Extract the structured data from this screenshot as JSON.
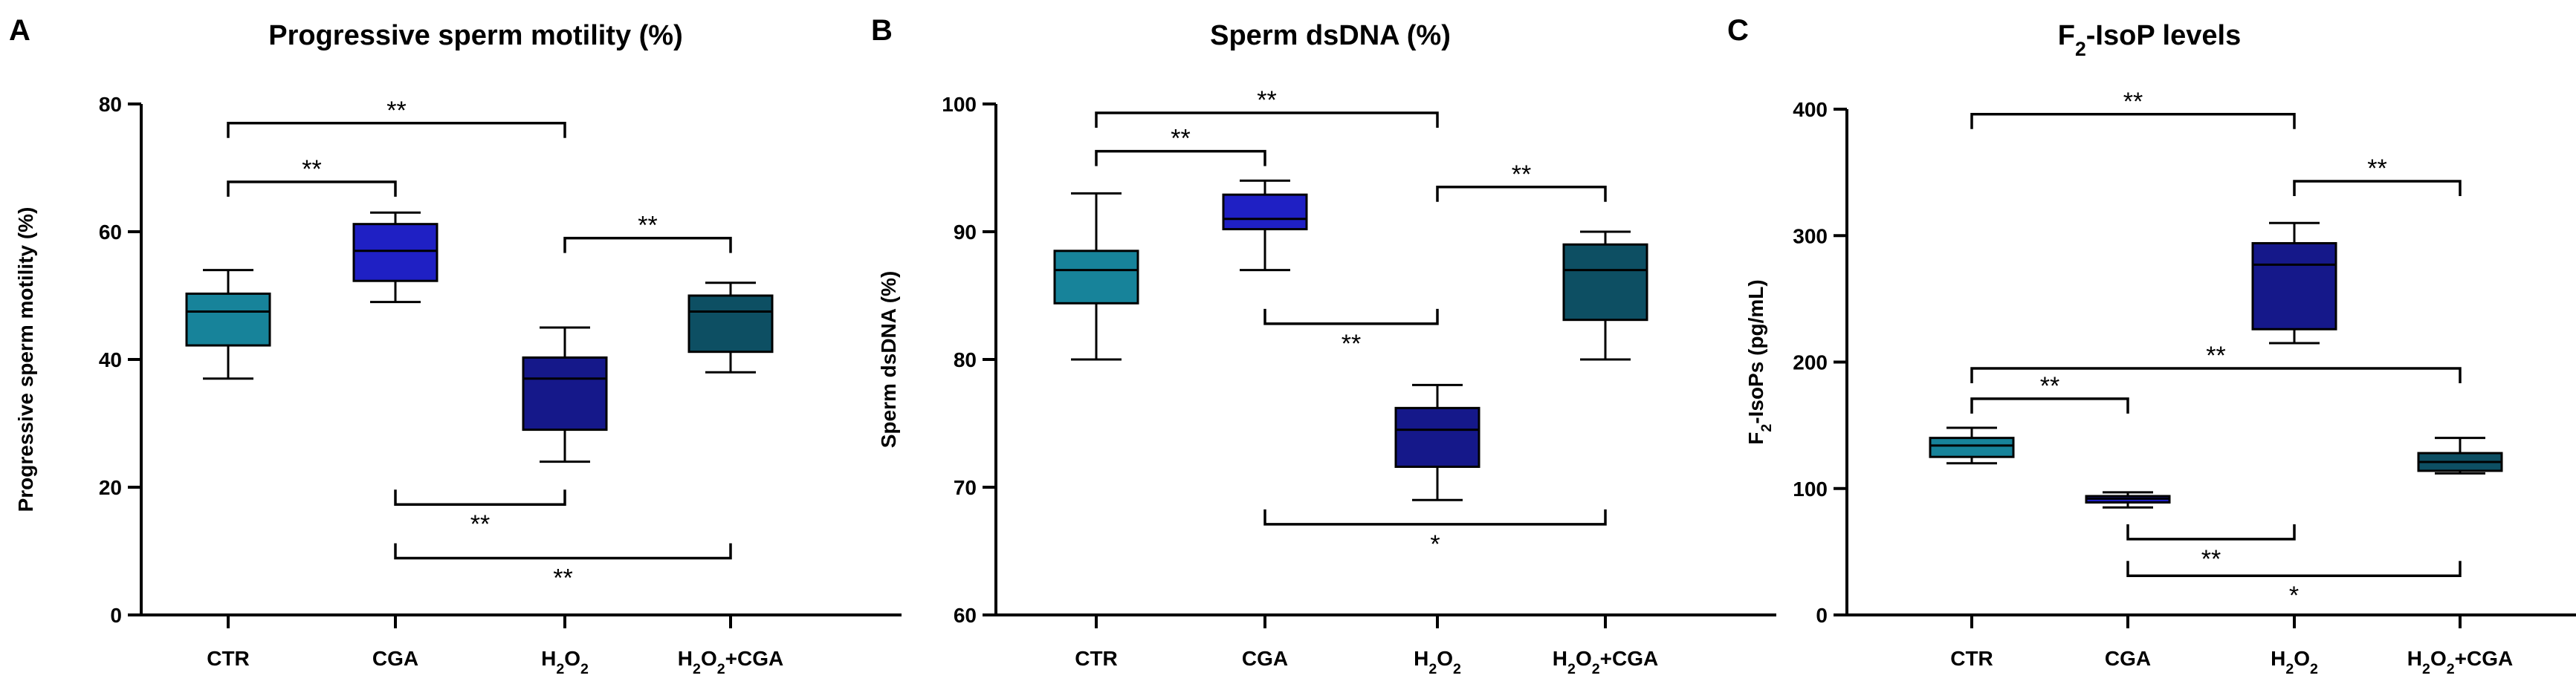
{
  "colors": {
    "CTR": "#17839a",
    "CGA": "#1f20c4",
    "H2O2": "#15188a",
    "H2O2_CGA": "#0d4f63"
  },
  "chart_data": [
    {
      "type": "box",
      "panel": "A",
      "title": "Progressive sperm motility (%)",
      "xlabel": "",
      "ylabel": "Progressive sperm motility (%)",
      "ylim": [
        0,
        80
      ],
      "yticks": [
        "0",
        "20",
        "40",
        "60",
        "80"
      ],
      "groups": [
        {
          "label": "CTR",
          "html": "CTR",
          "color": "#17839a",
          "min": 37,
          "q1": 42.2,
          "median": 47.5,
          "q3": 50.3,
          "max": 54
        },
        {
          "label": "CGA",
          "html": "CGA",
          "color": "#1f20c4",
          "min": 49,
          "q1": 52.3,
          "median": 57,
          "q3": 61.2,
          "max": 63
        },
        {
          "label": "H2O2",
          "html": "H<tspan baseline-shift='sub' font-size='70%'>2</tspan>O<tspan baseline-shift='sub' font-size='70%'>2</tspan>",
          "color": "#15188a",
          "min": 24,
          "q1": 29,
          "median": 37,
          "q3": 40.3,
          "max": 45
        },
        {
          "label": "H2O2+CGA",
          "html": "H<tspan baseline-shift='sub' font-size='70%'>2</tspan>O<tspan baseline-shift='sub' font-size='70%'>2</tspan>+CGA",
          "color": "#0d4f63",
          "min": 38,
          "q1": 41.2,
          "median": 47.5,
          "q3": 50,
          "max": 52
        }
      ],
      "significance": [
        {
          "from": 0,
          "to": 1,
          "y": 67.8,
          "dir": "down",
          "label": "**"
        },
        {
          "from": 0,
          "to": 2,
          "y": 77,
          "dir": "down",
          "label": "**"
        },
        {
          "from": 2,
          "to": 3,
          "y": 59,
          "dir": "down",
          "label": "**"
        },
        {
          "from": 1,
          "to": 2,
          "y": 17.3,
          "dir": "up",
          "label": "**"
        },
        {
          "from": 1,
          "to": 3,
          "y": 8.9,
          "dir": "up",
          "label": "**"
        }
      ]
    },
    {
      "type": "box",
      "panel": "B",
      "title": "Sperm dsDNA (%)",
      "xlabel": "",
      "ylabel": "Sperm dsDNA (%)",
      "ylim": [
        60,
        100
      ],
      "yticks": [
        "60",
        "70",
        "80",
        "90",
        "100"
      ],
      "groups": [
        {
          "label": "CTR",
          "html": "CTR",
          "color": "#17839a",
          "min": 80,
          "q1": 84.4,
          "median": 87,
          "q3": 88.5,
          "max": 93
        },
        {
          "label": "CGA",
          "html": "CGA",
          "color": "#1f20c4",
          "min": 87,
          "q1": 90.2,
          "median": 91,
          "q3": 92.9,
          "max": 94
        },
        {
          "label": "H2O2",
          "html": "H<tspan baseline-shift='sub' font-size='70%'>2</tspan>O<tspan baseline-shift='sub' font-size='70%'>2</tspan>",
          "color": "#15188a",
          "min": 69,
          "q1": 71.6,
          "median": 74.5,
          "q3": 76.2,
          "max": 78
        },
        {
          "label": "H2O2+CGA",
          "html": "H<tspan baseline-shift='sub' font-size='70%'>2</tspan>O<tspan baseline-shift='sub' font-size='70%'>2</tspan>+CGA",
          "color": "#0d4f63",
          "min": 80,
          "q1": 83.1,
          "median": 87,
          "q3": 89,
          "max": 90
        }
      ],
      "significance": [
        {
          "from": 0,
          "to": 2,
          "y": 99.3,
          "dir": "down",
          "label": "**"
        },
        {
          "from": 0,
          "to": 1,
          "y": 96.3,
          "dir": "down",
          "label": "**"
        },
        {
          "from": 2,
          "to": 3,
          "y": 93.5,
          "dir": "down",
          "label": "**"
        },
        {
          "from": 1,
          "to": 2,
          "y": 82.8,
          "dir": "up",
          "label": "**"
        },
        {
          "from": 1,
          "to": 3,
          "y": 67.1,
          "dir": "up",
          "label": "*"
        }
      ]
    },
    {
      "type": "box",
      "panel": "C",
      "title": "F2-IsoP levels",
      "title_html": "F<tspan baseline-shift='sub' font-size='70%'>2</tspan>-IsoP levels",
      "xlabel": "",
      "ylabel": "F2-IsoPs (pg/mL)",
      "ylabel_html": "F<tspan baseline-shift='sub' font-size='70%'>2</tspan>-IsoPs (pg/mL)",
      "ylim": [
        0,
        400
      ],
      "yticks": [
        "0",
        "100",
        "200",
        "300",
        "400"
      ],
      "groups": [
        {
          "label": "CTR",
          "html": "CTR",
          "color": "#17839a",
          "min": 120,
          "q1": 125,
          "median": 134,
          "q3": 140,
          "max": 148
        },
        {
          "label": "CGA",
          "html": "CGA",
          "color": "#1f20c4",
          "min": 85,
          "q1": 89,
          "median": 92,
          "q3": 94,
          "max": 97
        },
        {
          "label": "H2O2",
          "html": "H<tspan baseline-shift='sub' font-size='70%'>2</tspan>O<tspan baseline-shift='sub' font-size='70%'>2</tspan>",
          "color": "#15188a",
          "min": 215,
          "q1": 226,
          "median": 277,
          "q3": 294,
          "max": 310
        },
        {
          "label": "H2O2+CGA",
          "html": "H<tspan baseline-shift='sub' font-size='70%'>2</tspan>O<tspan baseline-shift='sub' font-size='70%'>2</tspan>+CGA",
          "color": "#0d4f63",
          "min": 112,
          "q1": 114,
          "median": 121,
          "q3": 128,
          "max": 140
        }
      ],
      "significance": [
        {
          "from": 0,
          "to": 2,
          "y": 396,
          "dir": "down",
          "label": "**"
        },
        {
          "from": 2,
          "to": 3,
          "y": 343,
          "dir": "down",
          "label": "**"
        },
        {
          "from": 0,
          "to": 3,
          "y": 195,
          "dir": "down",
          "label": "**"
        },
        {
          "from": 0,
          "to": 1,
          "y": 171,
          "dir": "down",
          "label": "**"
        },
        {
          "from": 1,
          "to": 2,
          "y": 60,
          "dir": "up",
          "label": "**"
        },
        {
          "from": 1,
          "to": 3,
          "y": 31,
          "dir": "up",
          "label": "*"
        }
      ]
    }
  ]
}
